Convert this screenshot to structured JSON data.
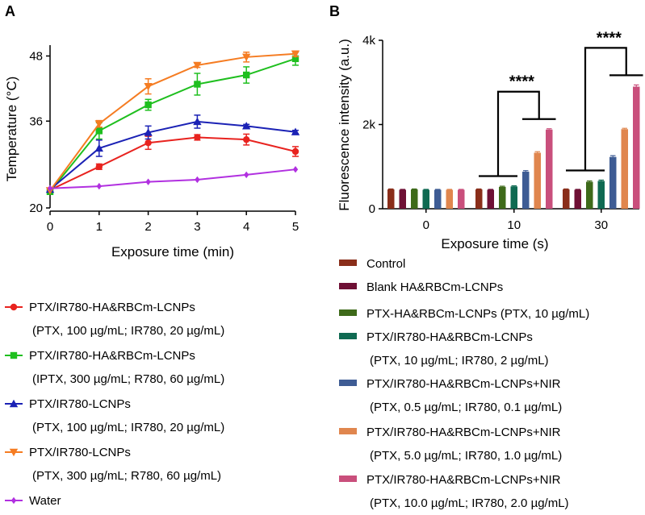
{
  "chart_data": [
    {
      "panel": "A",
      "type": "line",
      "xlabel": "Exposure time (min)",
      "ylabel": "Temperature (°C)",
      "x": [
        0,
        1,
        2,
        3,
        4,
        5
      ],
      "xticks": [
        "0",
        "1",
        "2",
        "3",
        "4",
        "5"
      ],
      "yticks": [
        20,
        36,
        48
      ],
      "ylim": [
        20,
        50
      ],
      "xlim": [
        0,
        5
      ],
      "series": [
        {
          "name": "PTX/IR780-HA&RBCm-LCNPs",
          "detail": "(PTX, 100 µg/mL; IR780, 20 µg/mL)",
          "color": "#e8231f",
          "marker": "circle",
          "values": [
            23.3,
            27.6,
            32.0,
            33.0,
            32.6,
            30.4
          ],
          "errors": [
            0,
            0.5,
            1.2,
            0.5,
            1.0,
            0.9
          ]
        },
        {
          "name": "PTX/IR780-HA&RBCm-LCNPs",
          "detail": "(IPTX, 300 µg/mL; R780, 60 µg/mL)",
          "color": "#1fbf1f",
          "marker": "square",
          "values": [
            23.0,
            34.2,
            39.0,
            42.8,
            44.5,
            47.5
          ],
          "errors": [
            0,
            1.5,
            1.0,
            2.0,
            1.5,
            1.2
          ]
        },
        {
          "name": "PTX/IR780-LCNPs",
          "detail": "(PTX, 100 µg/mL; IR780, 20 µg/mL)",
          "color": "#1b22b5",
          "marker": "triangle-up",
          "values": [
            23.4,
            31.0,
            33.9,
            35.9,
            35.1,
            34.0
          ],
          "errors": [
            0,
            1.5,
            1.2,
            1.2,
            0.3,
            0.3
          ]
        },
        {
          "name": "PTX/IR780-LCNPs",
          "detail": "(PTX, 300 µg/mL; R780, 60 µg/mL)",
          "color": "#f57c22",
          "marker": "triangle-down",
          "values": [
            23.2,
            35.5,
            42.4,
            46.3,
            47.8,
            48.4
          ],
          "errors": [
            0,
            0.6,
            1.4,
            0.4,
            0.9,
            0.5
          ]
        },
        {
          "name": "Water",
          "detail": "",
          "color": "#b130e0",
          "marker": "diamond",
          "values": [
            23.6,
            24.0,
            24.8,
            25.2,
            26.1,
            27.1
          ],
          "errors": [
            0,
            0,
            0,
            0,
            0,
            0
          ]
        }
      ]
    },
    {
      "panel": "B",
      "type": "bar",
      "xlabel": "Exposure time (s)",
      "ylabel": "Fluorescence intensity (a.u.)",
      "categories": [
        "0",
        "10",
        "30"
      ],
      "yticks": [
        "0",
        "2k",
        "4k"
      ],
      "ylim": [
        0,
        4000
      ],
      "significance": "****",
      "series": [
        {
          "name": "Control",
          "detail": "",
          "color": "#8a2e1a",
          "values": [
            460,
            460,
            460
          ],
          "errors": [
            10,
            10,
            10
          ]
        },
        {
          "name": "Blank HA&RBCm-LCNPs",
          "detail": "",
          "color": "#6e1035",
          "values": [
            450,
            450,
            450
          ],
          "errors": [
            10,
            10,
            10
          ]
        },
        {
          "name": "PTX-HA&RBCm-LCNPs (PTX, 10 µg/mL)",
          "detail": "",
          "color": "#3e6a1a",
          "values": [
            460,
            520,
            640
          ],
          "errors": [
            10,
            15,
            20
          ]
        },
        {
          "name": "PTX/IR780-HA&RBCm-LCNPs",
          "detail": "(PTX, 10 µg/mL; IR780, 2 µg/mL)",
          "color": "#0f6a52",
          "values": [
            450,
            530,
            660
          ],
          "errors": [
            10,
            15,
            20
          ]
        },
        {
          "name": "PTX/IR780-HA&RBCm-LCNPs+NIR",
          "detail": "(PTX, 0.5 µg/mL; IR780, 0.1 µg/mL)",
          "color": "#3e5c94",
          "values": [
            450,
            880,
            1230
          ],
          "errors": [
            10,
            25,
            30
          ]
        },
        {
          "name": "PTX/IR780-HA&RBCm-LCNPs+NIR",
          "detail": "(PTX, 5.0 µg/mL; IR780, 1.0 µg/mL)",
          "color": "#e0864e",
          "values": [
            450,
            1330,
            1890
          ],
          "errors": [
            10,
            25,
            20
          ]
        },
        {
          "name": "PTX/IR780-HA&RBCm-LCNPs+NIR",
          "detail": "(PTX, 10.0 µg/mL; IR780, 2.0 µg/mL)",
          "color": "#c94f7c",
          "values": [
            450,
            1880,
            2900
          ],
          "errors": [
            10,
            20,
            40
          ]
        }
      ]
    }
  ]
}
